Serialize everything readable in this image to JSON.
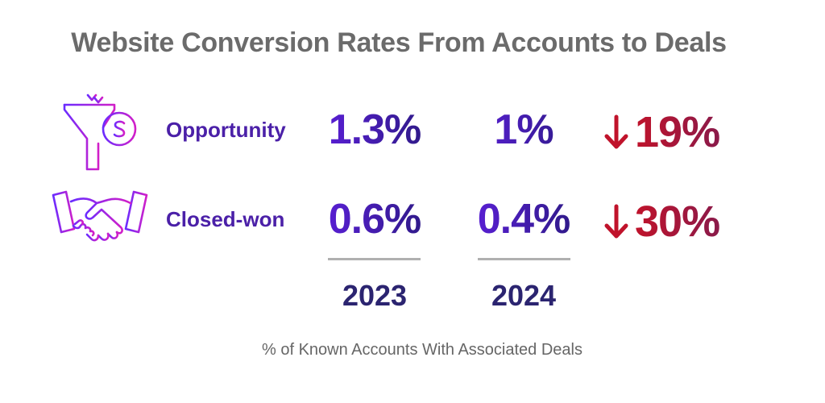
{
  "title": "Website Conversion Rates From Accounts to Deals",
  "footnote": "% of Known Accounts With Associated Deals",
  "icons": [
    "funnel-dollar-icon",
    "handshake-icon"
  ],
  "colors": {
    "title": "#6b6b6b",
    "label": "#4b20a8",
    "value_start": "#5a1fd6",
    "value_end": "#2e1a86",
    "decrease": "#c0132b",
    "year": "#2b2470"
  },
  "chart_data": {
    "type": "table",
    "title": "Website Conversion Rates From Accounts to Deals",
    "columns": [
      "2023",
      "2024"
    ],
    "rows": [
      {
        "label": "Opportunity",
        "values": [
          "1.3%",
          "1%"
        ],
        "change": "19%",
        "direction": "down"
      },
      {
        "label": "Closed-won",
        "values": [
          "0.6%",
          "0.4%"
        ],
        "change": "30%",
        "direction": "down"
      }
    ],
    "note": "% of Known Accounts With Associated Deals"
  }
}
